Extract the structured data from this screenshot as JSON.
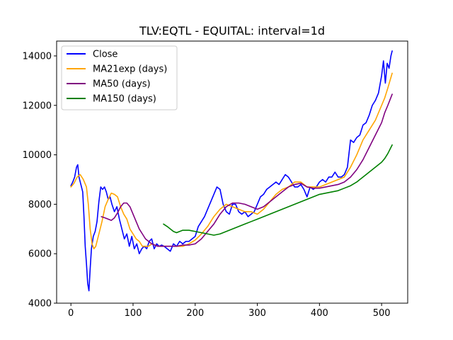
{
  "chart_data": {
    "type": "line",
    "title": "TLV:EQTL - EQUITAL: interval=1d",
    "xlabel": "",
    "ylabel": "",
    "xlim": [
      -23,
      542
    ],
    "ylim": [
      4000,
      14600
    ],
    "x_ticks": [
      0,
      100,
      200,
      300,
      400,
      500
    ],
    "y_ticks": [
      4000,
      6000,
      8000,
      10000,
      12000,
      14000
    ],
    "grid": false,
    "legend_position": "top-left",
    "series": [
      {
        "name": "Close",
        "color": "#0000ff",
        "x": [
          0,
          3,
          6,
          9,
          11,
          13,
          16,
          19,
          21,
          23,
          25,
          27,
          29,
          31,
          33,
          36,
          39,
          42,
          45,
          48,
          51,
          54,
          57,
          60,
          63,
          66,
          70,
          74,
          78,
          82,
          86,
          90,
          94,
          98,
          102,
          106,
          110,
          114,
          118,
          122,
          126,
          130,
          134,
          138,
          142,
          146,
          150,
          155,
          160,
          165,
          170,
          175,
          180,
          185,
          190,
          195,
          200,
          205,
          210,
          215,
          220,
          225,
          230,
          235,
          240,
          245,
          250,
          255,
          260,
          265,
          270,
          275,
          280,
          285,
          290,
          295,
          300,
          305,
          310,
          315,
          320,
          325,
          330,
          335,
          340,
          345,
          350,
          355,
          360,
          365,
          370,
          375,
          380,
          385,
          390,
          395,
          400,
          405,
          410,
          415,
          420,
          425,
          430,
          435,
          440,
          445,
          450,
          455,
          460,
          465,
          470,
          475,
          480,
          485,
          490,
          495,
          500,
          503,
          506,
          509,
          512,
          515,
          517
        ],
        "values": [
          8750,
          8900,
          9100,
          9500,
          9600,
          9100,
          8800,
          8500,
          7500,
          6300,
          5600,
          4800,
          4500,
          5400,
          6200,
          6700,
          6900,
          7300,
          8100,
          8700,
          8600,
          8700,
          8500,
          8200,
          8300,
          8000,
          7700,
          7900,
          7400,
          7000,
          6600,
          6800,
          6300,
          6700,
          6200,
          6400,
          6000,
          6200,
          6300,
          6200,
          6500,
          6600,
          6200,
          6400,
          6300,
          6350,
          6300,
          6200,
          6100,
          6400,
          6300,
          6500,
          6400,
          6500,
          6500,
          6600,
          6700,
          7100,
          7300,
          7500,
          7800,
          8100,
          8400,
          8700,
          8600,
          8000,
          7700,
          7600,
          8000,
          8000,
          7700,
          7600,
          7700,
          7500,
          7600,
          7700,
          8000,
          8300,
          8400,
          8600,
          8700,
          8800,
          8900,
          8800,
          9000,
          9200,
          9100,
          8900,
          8700,
          8700,
          8800,
          8600,
          8300,
          8700,
          8600,
          8700,
          8900,
          9000,
          8900,
          9100,
          9100,
          9300,
          9100,
          9100,
          9200,
          9500,
          10600,
          10500,
          10700,
          10800,
          11200,
          11300,
          11600,
          12000,
          12200,
          12500,
          13200,
          13800,
          12900,
          13700,
          13500,
          14000,
          14200
        ]
      },
      {
        "name": "MA21exp (days)",
        "color": "#ffa500",
        "x": [
          0,
          5,
          10,
          15,
          20,
          25,
          28,
          31,
          34,
          37,
          40,
          45,
          50,
          55,
          60,
          65,
          70,
          75,
          80,
          85,
          90,
          95,
          100,
          105,
          110,
          115,
          120,
          125,
          130,
          140,
          150,
          160,
          170,
          180,
          190,
          200,
          210,
          220,
          230,
          240,
          250,
          260,
          270,
          280,
          290,
          300,
          310,
          320,
          330,
          340,
          350,
          360,
          370,
          380,
          390,
          400,
          410,
          420,
          430,
          440,
          450,
          460,
          470,
          480,
          490,
          500,
          505,
          510,
          517
        ],
        "values": [
          8700,
          8850,
          9100,
          9200,
          9000,
          8700,
          8000,
          7000,
          6400,
          6200,
          6300,
          6800,
          7300,
          7900,
          8200,
          8450,
          8400,
          8300,
          7900,
          7600,
          7400,
          7000,
          6800,
          6600,
          6500,
          6300,
          6300,
          6300,
          6400,
          6300,
          6300,
          6300,
          6300,
          6300,
          6400,
          6550,
          6800,
          7100,
          7500,
          7800,
          8000,
          7900,
          7800,
          7700,
          7700,
          7600,
          7800,
          8100,
          8400,
          8600,
          8700,
          8900,
          8900,
          8700,
          8700,
          8700,
          8800,
          8900,
          9000,
          9100,
          9500,
          10000,
          10600,
          11000,
          11400,
          12000,
          12300,
          12700,
          13300
        ]
      },
      {
        "name": "MA50 (days)",
        "color": "#800080",
        "x": [
          49,
          55,
          60,
          65,
          70,
          75,
          80,
          85,
          90,
          95,
          100,
          105,
          110,
          115,
          120,
          125,
          130,
          140,
          150,
          160,
          170,
          180,
          190,
          200,
          210,
          220,
          230,
          240,
          250,
          260,
          270,
          280,
          290,
          300,
          310,
          320,
          330,
          340,
          350,
          360,
          370,
          380,
          390,
          400,
          410,
          420,
          430,
          440,
          450,
          460,
          470,
          480,
          490,
          500,
          505,
          510,
          517
        ],
        "values": [
          7500,
          7450,
          7400,
          7350,
          7450,
          7650,
          7900,
          8050,
          8050,
          7900,
          7600,
          7300,
          7000,
          6800,
          6600,
          6500,
          6400,
          6300,
          6300,
          6300,
          6300,
          6350,
          6350,
          6400,
          6600,
          6900,
          7200,
          7600,
          7900,
          8050,
          8050,
          8000,
          7900,
          7800,
          7900,
          8100,
          8300,
          8500,
          8700,
          8800,
          8850,
          8700,
          8650,
          8650,
          8700,
          8750,
          8800,
          8900,
          9100,
          9400,
          9800,
          10300,
          10800,
          11300,
          11700,
          12000,
          12450
        ]
      },
      {
        "name": "MA150 (days)",
        "color": "#008000",
        "x": [
          149,
          155,
          160,
          165,
          170,
          175,
          180,
          185,
          190,
          200,
          210,
          220,
          230,
          240,
          250,
          260,
          270,
          280,
          290,
          300,
          310,
          320,
          330,
          340,
          350,
          360,
          370,
          380,
          390,
          400,
          410,
          420,
          430,
          440,
          450,
          460,
          470,
          480,
          490,
          500,
          505,
          510,
          517
        ],
        "values": [
          7200,
          7100,
          7000,
          6900,
          6850,
          6900,
          6950,
          6950,
          6950,
          6900,
          6850,
          6800,
          6750,
          6800,
          6900,
          7000,
          7100,
          7200,
          7300,
          7400,
          7500,
          7600,
          7700,
          7800,
          7900,
          8000,
          8100,
          8200,
          8300,
          8400,
          8450,
          8500,
          8550,
          8650,
          8750,
          8900,
          9100,
          9300,
          9500,
          9700,
          9850,
          10050,
          10400
        ]
      }
    ]
  }
}
